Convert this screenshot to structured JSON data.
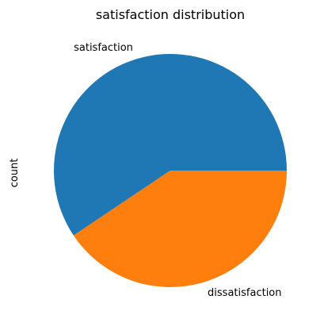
{
  "chart_data": {
    "type": "pie",
    "title": "satisfaction distribution",
    "ylabel": "count",
    "slices": [
      {
        "label": "satisfaction",
        "value": 59.4,
        "color": "#1f77b4"
      },
      {
        "label": "dissatisfaction",
        "value": 40.6,
        "color": "#ff7f0e"
      }
    ],
    "start_angle_deg": 0,
    "direction": "counterclockwise",
    "legend": "none",
    "grid": false
  }
}
